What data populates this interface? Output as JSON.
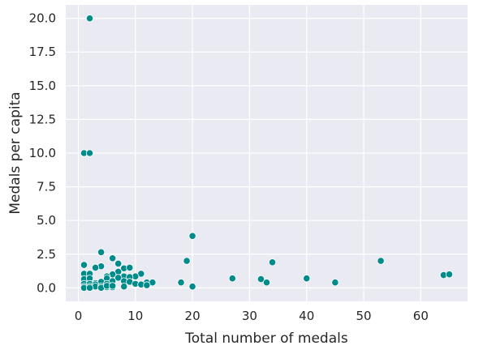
{
  "chart_data": {
    "type": "scatter",
    "title": "",
    "xlabel": "Total number of medals",
    "ylabel": "Medals per capita",
    "xlim": [
      -2.2,
      68.2
    ],
    "ylim": [
      -1.0,
      21.0
    ],
    "xticks": [
      0,
      10,
      20,
      30,
      40,
      50,
      60
    ],
    "yticks": [
      0.0,
      2.5,
      5.0,
      7.5,
      10.0,
      12.5,
      15.0,
      17.5,
      20.0
    ],
    "ytick_labels": [
      "0.0",
      "2.5",
      "5.0",
      "7.5",
      "10.0",
      "12.5",
      "15.0",
      "17.5",
      "20.0"
    ],
    "grid": true,
    "background": "#EAEAF2",
    "grid_color": "#FFFFFF",
    "point_color": "#008B8B",
    "points": [
      [
        2,
        20.0
      ],
      [
        1,
        10.0
      ],
      [
        2,
        10.0
      ],
      [
        20,
        3.85
      ],
      [
        4,
        2.65
      ],
      [
        6,
        2.2
      ],
      [
        19,
        2.0
      ],
      [
        53,
        2.0
      ],
      [
        34,
        1.9
      ],
      [
        1,
        1.7
      ],
      [
        7,
        1.8
      ],
      [
        4,
        1.6
      ],
      [
        3,
        1.5
      ],
      [
        8,
        1.45
      ],
      [
        9,
        1.5
      ],
      [
        7,
        1.2
      ],
      [
        11,
        1.05
      ],
      [
        1,
        1.05
      ],
      [
        2,
        1.05
      ],
      [
        6,
        1.0
      ],
      [
        5,
        0.85
      ],
      [
        8,
        0.85
      ],
      [
        10,
        0.85
      ],
      [
        9,
        0.8
      ],
      [
        64,
        0.95
      ],
      [
        65,
        1.0
      ],
      [
        1,
        0.65
      ],
      [
        2,
        0.7
      ],
      [
        5,
        0.7
      ],
      [
        7,
        0.75
      ],
      [
        27,
        0.7
      ],
      [
        32,
        0.65
      ],
      [
        40,
        0.7
      ],
      [
        3,
        0.35
      ],
      [
        4,
        0.45
      ],
      [
        6,
        0.5
      ],
      [
        8,
        0.5
      ],
      [
        9,
        0.45
      ],
      [
        12,
        0.4
      ],
      [
        13,
        0.4
      ],
      [
        18,
        0.4
      ],
      [
        33,
        0.4
      ],
      [
        45,
        0.4
      ],
      [
        1,
        0.3
      ],
      [
        2,
        0.3
      ],
      [
        3,
        0.25
      ],
      [
        5,
        0.3
      ],
      [
        10,
        0.3
      ],
      [
        11,
        0.25
      ],
      [
        1,
        0.1
      ],
      [
        2,
        0.1
      ],
      [
        3,
        0.1
      ],
      [
        4,
        0.1
      ],
      [
        5,
        0.05
      ],
      [
        6,
        0.05
      ],
      [
        8,
        0.1
      ],
      [
        12,
        0.2
      ],
      [
        20,
        0.1
      ],
      [
        1,
        0.0
      ],
      [
        2,
        0.0
      ],
      [
        4,
        0.0
      ],
      [
        5,
        0.15
      ],
      [
        6,
        0.15
      ]
    ]
  }
}
